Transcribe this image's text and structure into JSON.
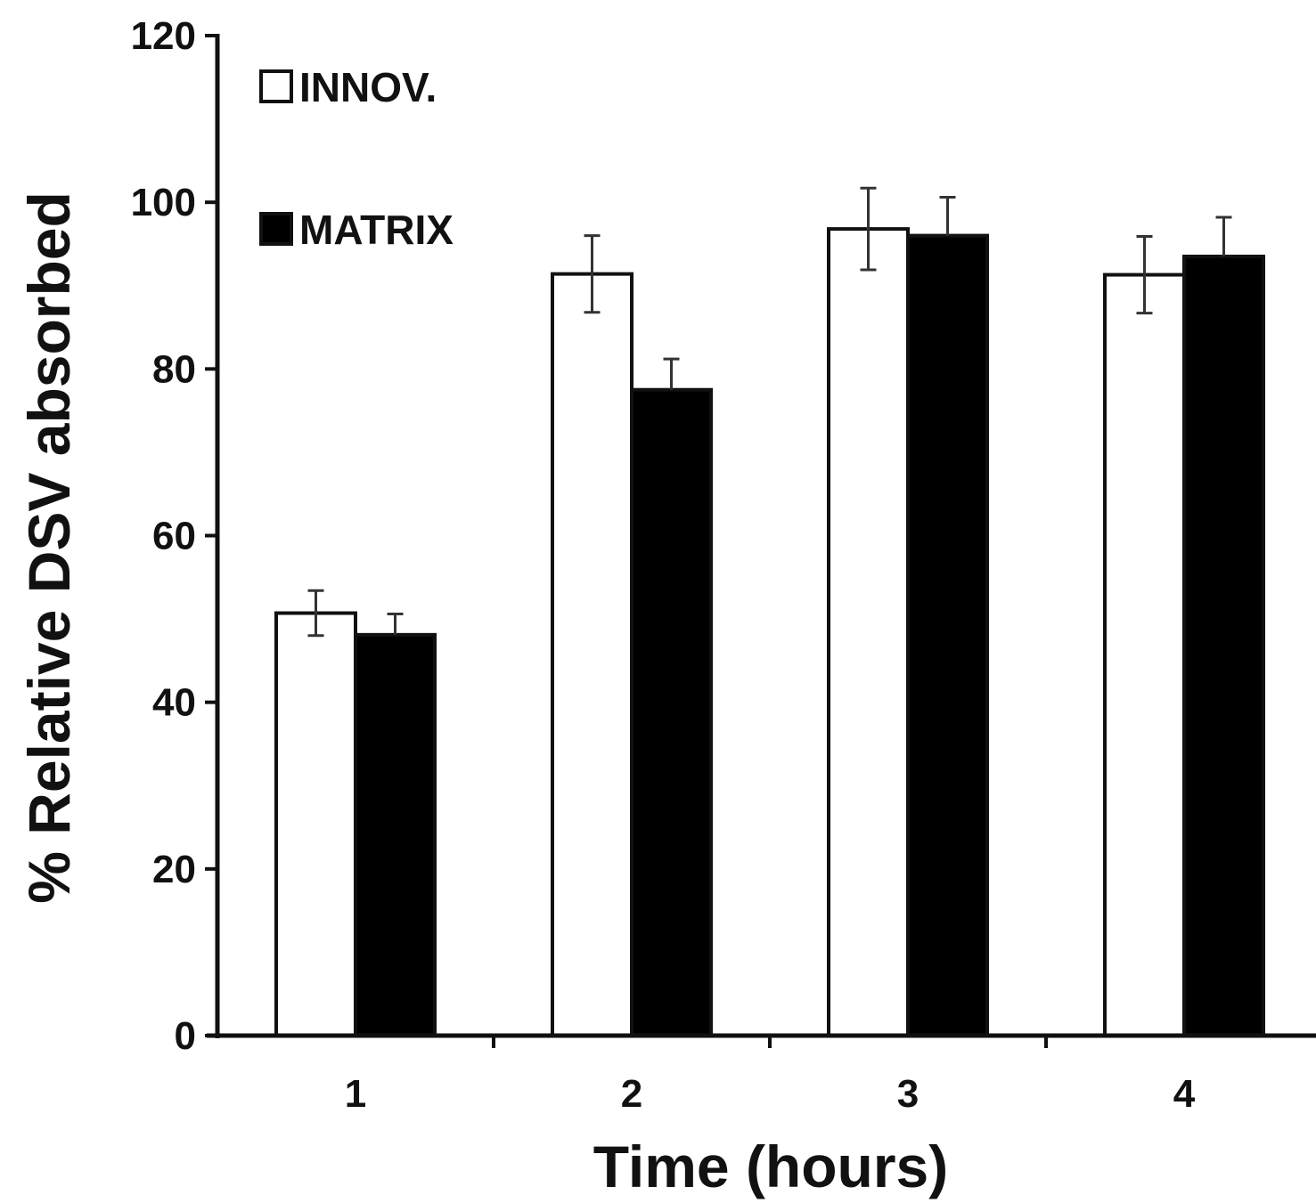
{
  "chart_data": {
    "type": "bar",
    "xlabel": "Time (hours)",
    "ylabel": "% Relative DSV absorbed",
    "categories": [
      "1",
      "2",
      "3",
      "4"
    ],
    "ylim": [
      0,
      120
    ],
    "yticks": [
      0,
      20,
      40,
      60,
      80,
      100,
      120
    ],
    "grid": false,
    "legend_position": "top-left",
    "series": [
      {
        "name": "INNOV.",
        "fill": "#ffffff",
        "stroke": "#111111",
        "values": [
          50.7,
          91.4,
          96.8,
          91.3
        ],
        "errors": [
          2.7,
          4.6,
          4.9,
          4.6
        ]
      },
      {
        "name": "MATRIX",
        "fill": "#000000",
        "stroke": "#111111",
        "values": [
          48.1,
          77.5,
          96.0,
          93.5
        ],
        "errors": [
          2.5,
          3.7,
          4.6,
          4.7
        ]
      }
    ]
  }
}
